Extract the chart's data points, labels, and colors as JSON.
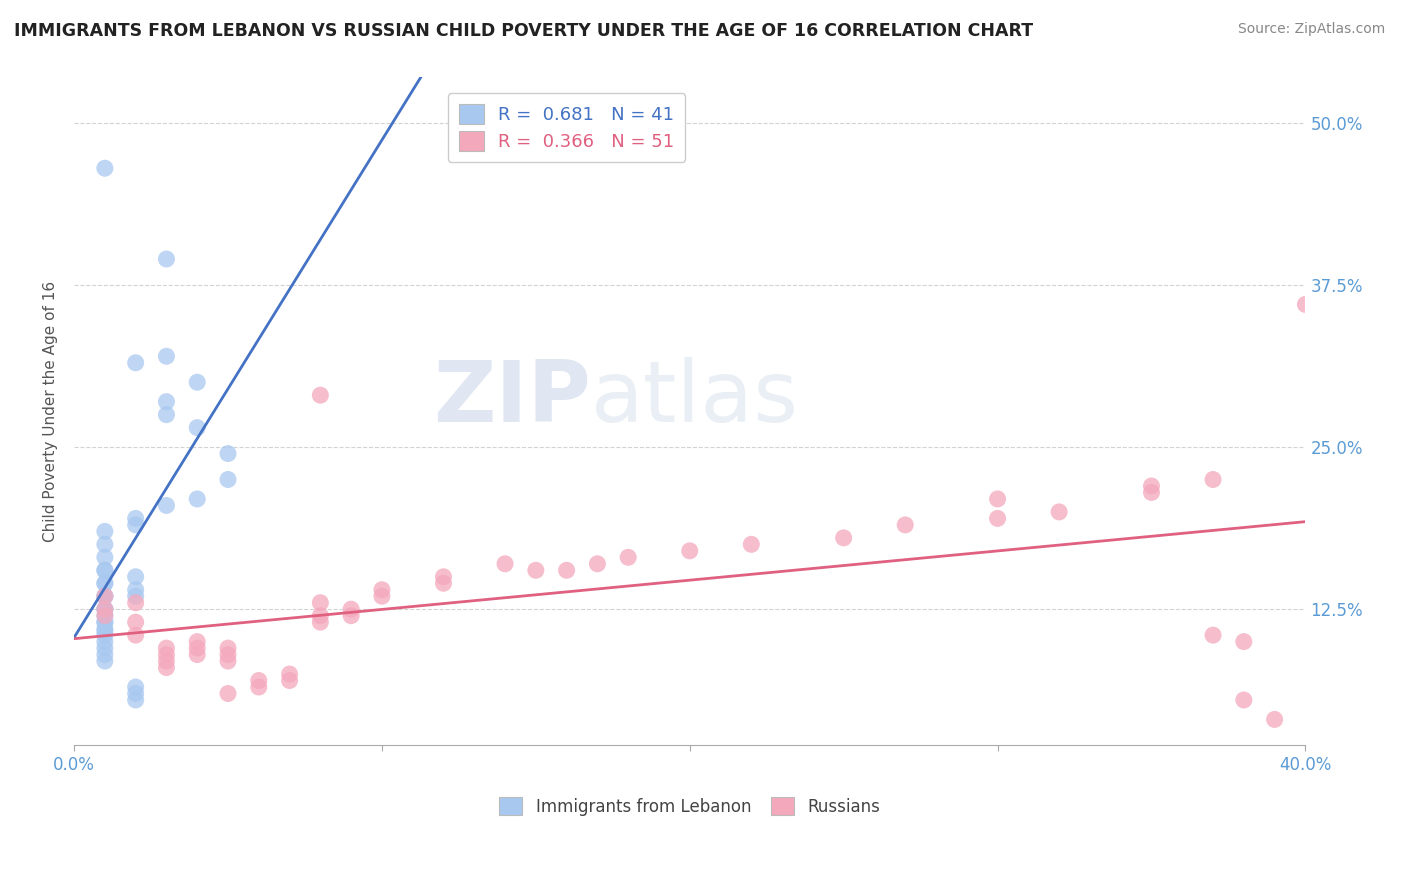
{
  "title": "IMMIGRANTS FROM LEBANON VS RUSSIAN CHILD POVERTY UNDER THE AGE OF 16 CORRELATION CHART",
  "source": "Source: ZipAtlas.com",
  "ylabel": "Child Poverty Under the Age of 16",
  "legend_blue_label": "R =  0.681   N = 41",
  "legend_pink_label": "R =  0.366   N = 51",
  "legend_label_blue": "Immigrants from Lebanon",
  "legend_label_pink": "Russians",
  "blue_color": "#a8c8f0",
  "pink_color": "#f4a8bc",
  "blue_line_color": "#4472c4",
  "pink_line_color": "#e06080",
  "blue_scatter": [
    [
      0.001,
      0.465
    ],
    [
      0.003,
      0.395
    ],
    [
      0.002,
      0.315
    ],
    [
      0.003,
      0.275
    ],
    [
      0.004,
      0.3
    ],
    [
      0.004,
      0.265
    ],
    [
      0.005,
      0.245
    ],
    [
      0.005,
      0.225
    ],
    [
      0.004,
      0.21
    ],
    [
      0.003,
      0.32
    ],
    [
      0.003,
      0.285
    ],
    [
      0.002,
      0.195
    ],
    [
      0.002,
      0.19
    ],
    [
      0.003,
      0.205
    ],
    [
      0.001,
      0.185
    ],
    [
      0.001,
      0.175
    ],
    [
      0.001,
      0.165
    ],
    [
      0.001,
      0.155
    ],
    [
      0.001,
      0.155
    ],
    [
      0.001,
      0.145
    ],
    [
      0.001,
      0.145
    ],
    [
      0.001,
      0.135
    ],
    [
      0.001,
      0.135
    ],
    [
      0.001,
      0.125
    ],
    [
      0.001,
      0.125
    ],
    [
      0.001,
      0.12
    ],
    [
      0.001,
      0.115
    ],
    [
      0.001,
      0.115
    ],
    [
      0.001,
      0.11
    ],
    [
      0.001,
      0.108
    ],
    [
      0.001,
      0.105
    ],
    [
      0.001,
      0.1
    ],
    [
      0.001,
      0.095
    ],
    [
      0.001,
      0.09
    ],
    [
      0.001,
      0.085
    ],
    [
      0.002,
      0.15
    ],
    [
      0.002,
      0.135
    ],
    [
      0.002,
      0.14
    ],
    [
      0.002,
      0.065
    ],
    [
      0.002,
      0.06
    ],
    [
      0.002,
      0.055
    ]
  ],
  "pink_scatter": [
    [
      0.001,
      0.135
    ],
    [
      0.001,
      0.125
    ],
    [
      0.001,
      0.12
    ],
    [
      0.002,
      0.13
    ],
    [
      0.002,
      0.115
    ],
    [
      0.002,
      0.105
    ],
    [
      0.003,
      0.095
    ],
    [
      0.003,
      0.09
    ],
    [
      0.003,
      0.085
    ],
    [
      0.003,
      0.08
    ],
    [
      0.004,
      0.1
    ],
    [
      0.004,
      0.095
    ],
    [
      0.004,
      0.09
    ],
    [
      0.005,
      0.095
    ],
    [
      0.005,
      0.09
    ],
    [
      0.005,
      0.085
    ],
    [
      0.005,
      0.06
    ],
    [
      0.006,
      0.07
    ],
    [
      0.006,
      0.065
    ],
    [
      0.007,
      0.075
    ],
    [
      0.007,
      0.07
    ],
    [
      0.008,
      0.13
    ],
    [
      0.008,
      0.12
    ],
    [
      0.008,
      0.115
    ],
    [
      0.009,
      0.125
    ],
    [
      0.009,
      0.12
    ],
    [
      0.01,
      0.14
    ],
    [
      0.01,
      0.135
    ],
    [
      0.012,
      0.15
    ],
    [
      0.012,
      0.145
    ],
    [
      0.014,
      0.16
    ],
    [
      0.015,
      0.155
    ],
    [
      0.016,
      0.155
    ],
    [
      0.017,
      0.16
    ],
    [
      0.018,
      0.165
    ],
    [
      0.02,
      0.17
    ],
    [
      0.022,
      0.175
    ],
    [
      0.025,
      0.18
    ],
    [
      0.027,
      0.19
    ],
    [
      0.03,
      0.195
    ],
    [
      0.032,
      0.2
    ],
    [
      0.035,
      0.22
    ],
    [
      0.035,
      0.215
    ],
    [
      0.037,
      0.225
    ],
    [
      0.038,
      0.055
    ],
    [
      0.039,
      0.04
    ],
    [
      0.037,
      0.105
    ],
    [
      0.038,
      0.1
    ],
    [
      0.008,
      0.29
    ],
    [
      0.03,
      0.21
    ],
    [
      0.04,
      0.36
    ]
  ],
  "xmin": 0.0,
  "xmax": 0.04,
  "xaxis_display_max": 0.4,
  "ymin": 0.02,
  "ymax": 0.535,
  "blue_line_x0": 0.0,
  "blue_line_x1": 0.008,
  "blue_line_y0": 0.115,
  "blue_line_y1": 0.495,
  "pink_line_x0": 0.0,
  "pink_line_x1": 0.04,
  "pink_line_y0": 0.115,
  "pink_line_y1": 0.265,
  "ytick_vals": [
    0.125,
    0.25,
    0.375,
    0.5
  ],
  "ytick_labels": [
    "12.5%",
    "25.0%",
    "37.5%",
    "50.0%"
  ]
}
